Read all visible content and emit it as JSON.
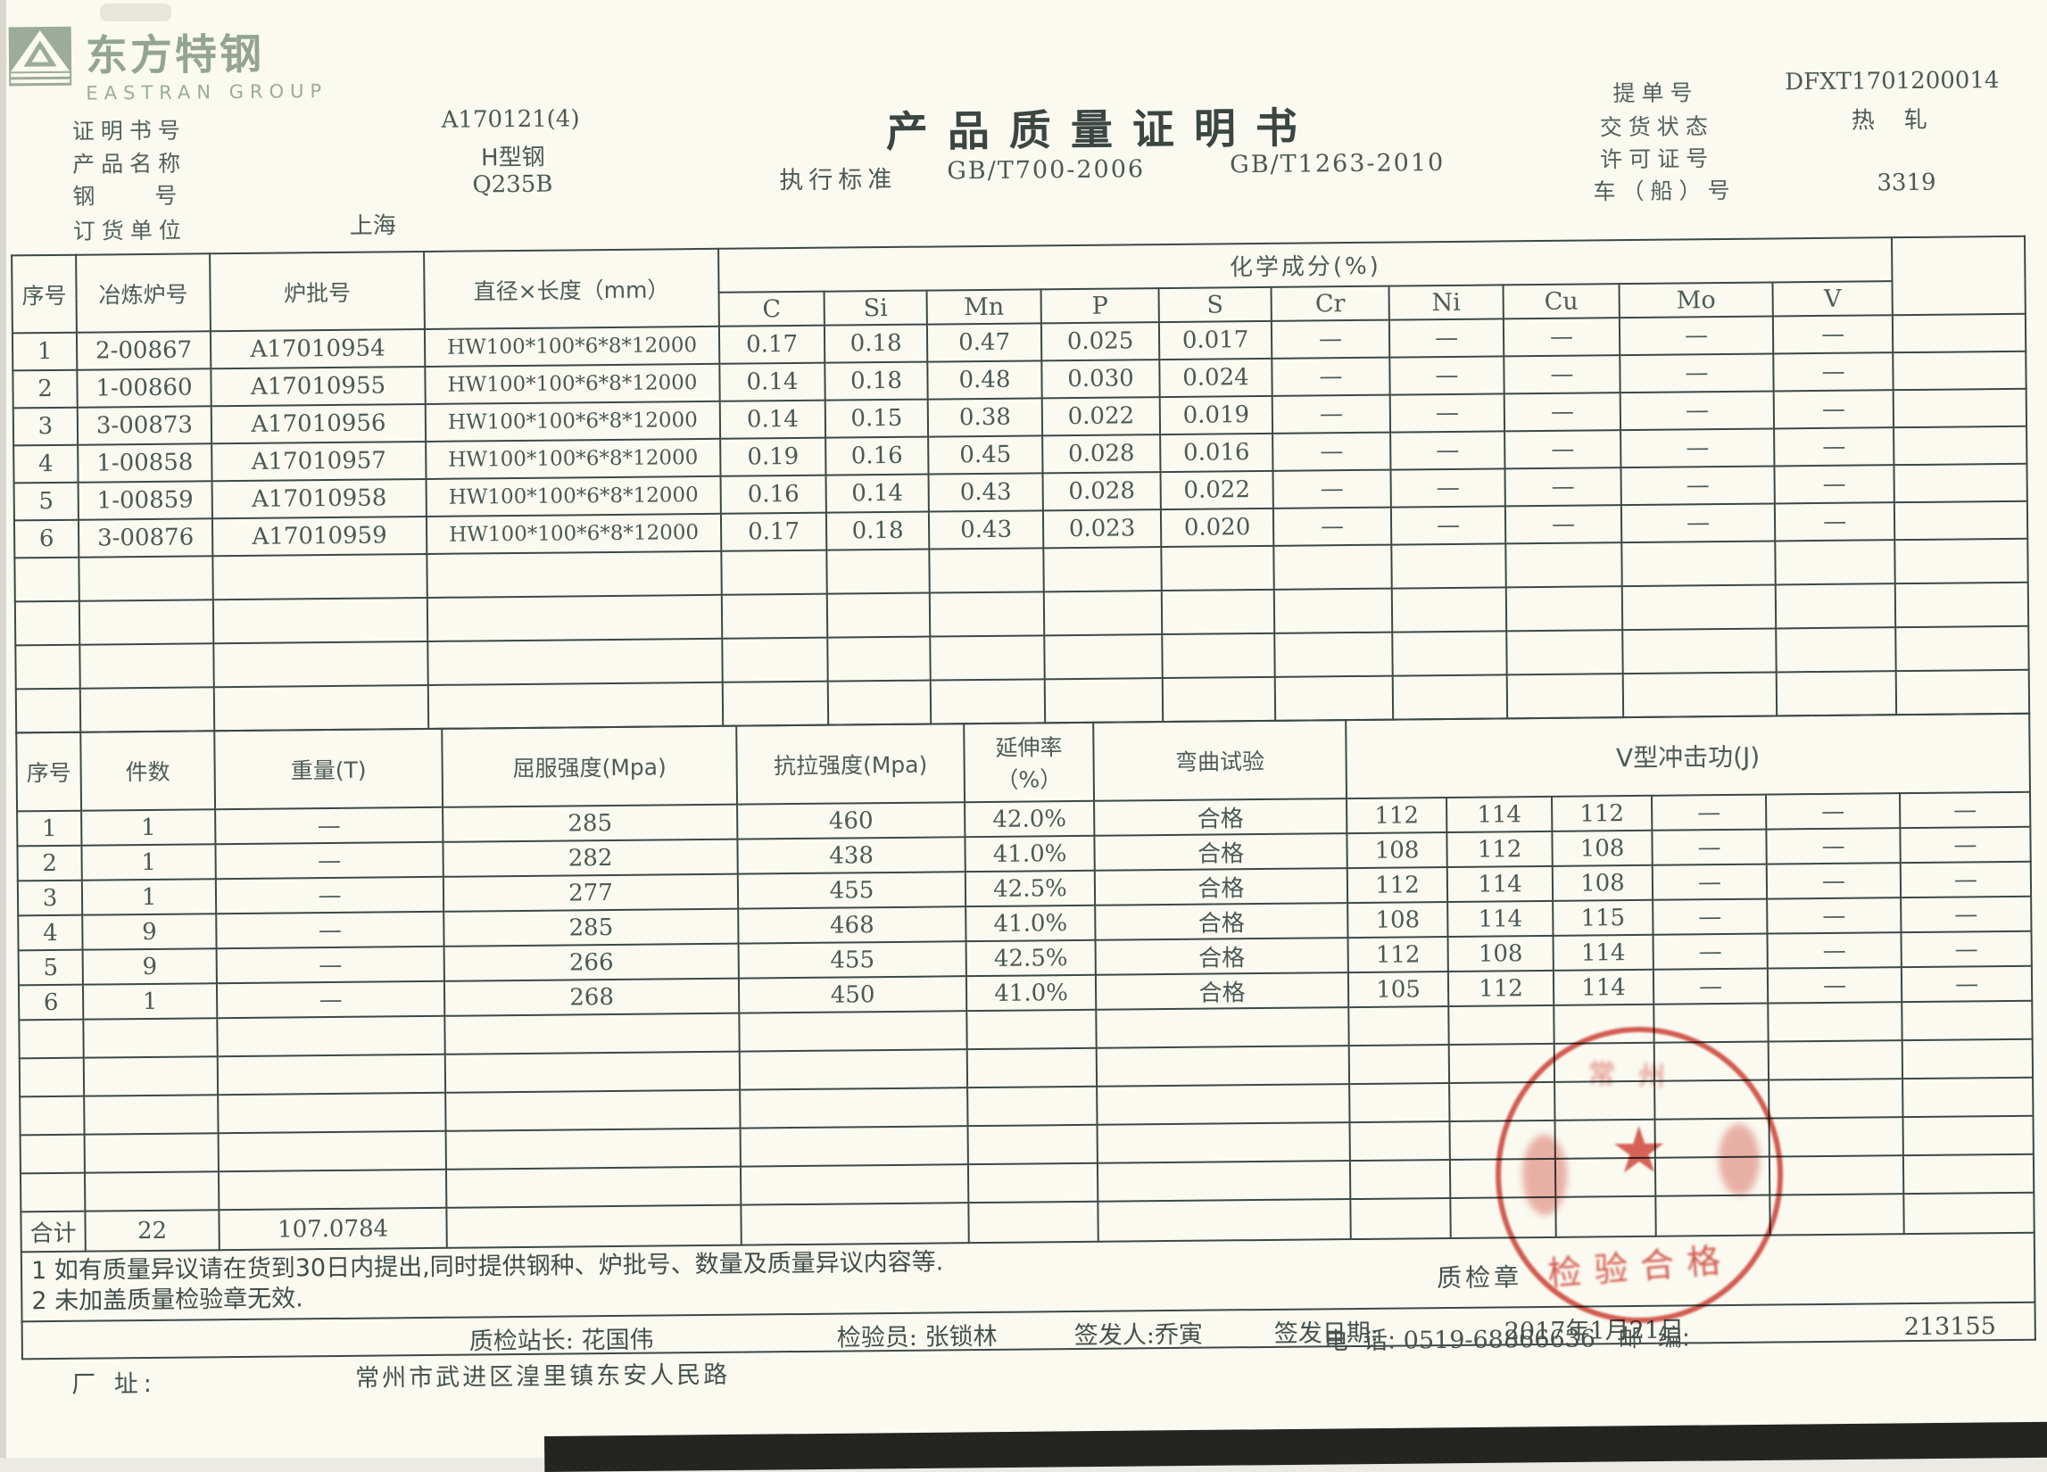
{
  "logo": {
    "cn": "东方特钢",
    "en": "EASTRAN GROUP"
  },
  "page": {
    "title": "产品质量证明书",
    "standard_label": "执行标准",
    "standard1": "GB/T700-2006",
    "standard2": "GB/T1263-2010"
  },
  "header_left": {
    "fields": [
      {
        "label": "证明书号",
        "value": "A170121(4)"
      },
      {
        "label": "产品名称",
        "value": "H型钢"
      },
      {
        "label": "钢    号",
        "value": "Q235B"
      },
      {
        "label": "订货单位",
        "value": "上海"
      }
    ]
  },
  "header_right": {
    "fields": [
      {
        "label": "提单号",
        "value": "DFXT1701200014"
      },
      {
        "label": "交货状态",
        "value": "热    轧"
      },
      {
        "label": "许可证号",
        "value": ""
      },
      {
        "label": "车（船）号",
        "value": "3319"
      }
    ]
  },
  "table1": {
    "h_no": "序号",
    "h_furnace": "冶炼炉号",
    "h_batch": "炉批号",
    "h_size": "直径×长度（mm）",
    "group_header": "化学成分(%)",
    "element_headers": [
      "C",
      "Si",
      "Mn",
      "P",
      "S",
      "Cr",
      "Ni",
      "Cu",
      "Mo",
      "V"
    ],
    "rows": [
      {
        "no": "1",
        "furnace": "2-00867",
        "batch": "A17010954",
        "size": "HW100*100*6*8*12000",
        "values": [
          "0.17",
          "0.18",
          "0.47",
          "0.025",
          "0.017",
          "—",
          "—",
          "—",
          "—",
          "—"
        ]
      },
      {
        "no": "2",
        "furnace": "1-00860",
        "batch": "A17010955",
        "size": "HW100*100*6*8*12000",
        "values": [
          "0.14",
          "0.18",
          "0.48",
          "0.030",
          "0.024",
          "—",
          "—",
          "—",
          "—",
          "—"
        ]
      },
      {
        "no": "3",
        "furnace": "3-00873",
        "batch": "A17010956",
        "size": "HW100*100*6*8*12000",
        "values": [
          "0.14",
          "0.15",
          "0.38",
          "0.022",
          "0.019",
          "—",
          "—",
          "—",
          "—",
          "—"
        ]
      },
      {
        "no": "4",
        "furnace": "1-00858",
        "batch": "A17010957",
        "size": "HW100*100*6*8*12000",
        "values": [
          "0.19",
          "0.16",
          "0.45",
          "0.028",
          "0.016",
          "—",
          "—",
          "—",
          "—",
          "—"
        ]
      },
      {
        "no": "5",
        "furnace": "1-00859",
        "batch": "A17010958",
        "size": "HW100*100*6*8*12000",
        "values": [
          "0.16",
          "0.14",
          "0.43",
          "0.028",
          "0.022",
          "—",
          "—",
          "—",
          "—",
          "—"
        ]
      },
      {
        "no": "6",
        "furnace": "3-00876",
        "batch": "A17010959",
        "size": "HW100*100*6*8*12000",
        "values": [
          "0.17",
          "0.18",
          "0.43",
          "0.023",
          "0.020",
          "—",
          "—",
          "—",
          "—",
          "—"
        ]
      }
    ],
    "empty_row_count": 4
  },
  "table2": {
    "h_no": "序号",
    "h_pieces": "件数",
    "h_weight": "重量(T)",
    "h_yield": "屈服强度(Mpa)",
    "h_tensile": "抗拉强度(Mpa)",
    "h_elong_1": "延伸率",
    "h_elong_2": "（%）",
    "h_bend": "弯曲试验",
    "h_impact": "V型冲击功(J)",
    "rows": [
      {
        "no": "1",
        "pieces": "1",
        "weight": "—",
        "yield": "285",
        "tensile": "460",
        "elongation": "42.0%",
        "bend": "合格",
        "impact": [
          "112",
          "114",
          "112",
          "—",
          "—",
          "—"
        ]
      },
      {
        "no": "2",
        "pieces": "1",
        "weight": "—",
        "yield": "282",
        "tensile": "438",
        "elongation": "41.0%",
        "bend": "合格",
        "impact": [
          "108",
          "112",
          "108",
          "—",
          "—",
          "—"
        ]
      },
      {
        "no": "3",
        "pieces": "1",
        "weight": "—",
        "yield": "277",
        "tensile": "455",
        "elongation": "42.5%",
        "bend": "合格",
        "impact": [
          "112",
          "114",
          "108",
          "—",
          "—",
          "—"
        ]
      },
      {
        "no": "4",
        "pieces": "9",
        "weight": "—",
        "yield": "285",
        "tensile": "468",
        "elongation": "41.0%",
        "bend": "合格",
        "impact": [
          "108",
          "114",
          "115",
          "—",
          "—",
          "—"
        ]
      },
      {
        "no": "5",
        "pieces": "9",
        "weight": "—",
        "yield": "266",
        "tensile": "455",
        "elongation": "42.5%",
        "bend": "合格",
        "impact": [
          "112",
          "108",
          "114",
          "—",
          "—",
          "—"
        ]
      },
      {
        "no": "6",
        "pieces": "1",
        "weight": "—",
        "yield": "268",
        "tensile": "450",
        "elongation": "41.0%",
        "bend": "合格",
        "impact": [
          "105",
          "112",
          "114",
          "—",
          "—",
          "—"
        ]
      }
    ],
    "empty_row_count": 5,
    "total_row": {
      "label": "合计",
      "pieces": "22",
      "weight": "107.0784"
    }
  },
  "notes": {
    "line1": "1 如有质量异议请在货到30日内提出,同时提供钢种、炉批号、数量及质量异议内容等.",
    "line2": "2 未加盖质量检验章无效.",
    "stamp_label": "质检章"
  },
  "signature": {
    "s1_label": "质检站长:",
    "s1_value": "花国伟",
    "s2_label": "检验员:",
    "s2_value": "张锁林",
    "s3_label": "签发人:",
    "s3_value": "乔寅",
    "s4_label": "签发日期:",
    "s4_value": "2017年1月21日"
  },
  "footer": {
    "phone_label": "电  话:",
    "phone_value": "0519-68866636",
    "zip_label": "邮  编:",
    "zip_value": "213155",
    "address_label": "厂 址:",
    "address_value": "常州市武进区湟里镇东安人民路"
  },
  "stamp": {
    "star": "★",
    "bottom_text": "检验合格",
    "top_text": "常州"
  },
  "colors": {
    "paper": "#fafaf1",
    "line": "#3c4846",
    "text": "#46524f",
    "logo_green": "#94a492",
    "stamp_red": "#c9382c"
  }
}
